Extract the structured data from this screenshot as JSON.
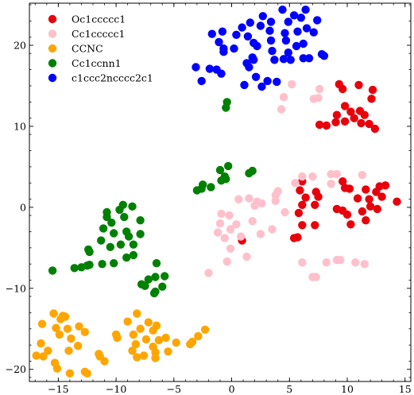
{
  "chart_data": {
    "type": "scatter",
    "title": "",
    "xlabel": "",
    "ylabel": "",
    "xlim": [
      -17.5,
      15.5
    ],
    "ylim": [
      -21.5,
      25.2
    ],
    "x_ticks": [
      -15,
      -10,
      -5,
      0,
      5,
      10,
      15
    ],
    "y_ticks": [
      -20,
      -10,
      0,
      10,
      20
    ],
    "x_tick_labels": [
      "−15",
      "−10",
      "−5",
      "0",
      "5",
      "10",
      "15"
    ],
    "y_tick_labels": [
      "−20",
      "−10",
      "0",
      "10",
      "20"
    ],
    "grid": false,
    "legend_position": "top-left",
    "series": [
      {
        "name": "Oc1ccccc1",
        "color": "#e8000b",
        "points": [
          [
            9.3,
            15.2
          ],
          [
            9.6,
            14.6
          ],
          [
            11.0,
            15.1
          ],
          [
            12.2,
            14.5
          ],
          [
            12.1,
            13.4
          ],
          [
            9.8,
            12.5
          ],
          [
            10.3,
            11.8
          ],
          [
            11.1,
            11.9
          ],
          [
            9.1,
            11.4
          ],
          [
            10.6,
            11.0
          ],
          [
            11.5,
            11.4
          ],
          [
            7.6,
            10.2
          ],
          [
            8.2,
            10.1
          ],
          [
            9.0,
            10.5
          ],
          [
            9.8,
            10.6
          ],
          [
            11.2,
            10.4
          ],
          [
            11.9,
            10.3
          ],
          [
            12.4,
            9.7
          ],
          [
            6.1,
            3.2
          ],
          [
            9.6,
            3.2
          ],
          [
            12.8,
            2.6
          ],
          [
            13.3,
            2.7
          ],
          [
            5.9,
            2.1
          ],
          [
            7.3,
            1.9
          ],
          [
            9.8,
            2.4
          ],
          [
            10.2,
            2.3
          ],
          [
            11.6,
            2.2
          ],
          [
            12.5,
            1.9
          ],
          [
            6.4,
            1.2
          ],
          [
            7.5,
            1.3
          ],
          [
            10.9,
            1.1
          ],
          [
            11.9,
            1.0
          ],
          [
            13.0,
            1.3
          ],
          [
            14.3,
            0.7
          ],
          [
            6.1,
            0.3
          ],
          [
            7.2,
            0.3
          ],
          [
            9.1,
            -0.2
          ],
          [
            9.6,
            -0.4
          ],
          [
            12.0,
            0.1
          ],
          [
            12.6,
            -0.2
          ],
          [
            5.8,
            -0.7
          ],
          [
            11.3,
            -0.5
          ],
          [
            10.0,
            -0.9
          ],
          [
            6.1,
            -2.2
          ],
          [
            7.2,
            -2.2
          ],
          [
            10.3,
            -2.1
          ],
          [
            11.6,
            -1.6
          ],
          [
            5.4,
            -3.8
          ],
          [
            5.7,
            -3.7
          ],
          [
            0.9,
            -4.1
          ]
        ]
      },
      {
        "name": "Cc1ccccc1",
        "color": "#ffc0cb",
        "points": [
          [
            5.2,
            15.2
          ],
          [
            7.6,
            14.6
          ],
          [
            4.5,
            13.6
          ],
          [
            7.1,
            13.4
          ],
          [
            7.5,
            13.5
          ],
          [
            4.3,
            12.1
          ],
          [
            6.1,
            3.8
          ],
          [
            7.0,
            3.8
          ],
          [
            8.6,
            4.1
          ],
          [
            9.1,
            4.1
          ],
          [
            11.3,
            4.0
          ],
          [
            5.5,
            3.0
          ],
          [
            8.6,
            2.9
          ],
          [
            4.0,
            2.0
          ],
          [
            3.8,
            1.5
          ],
          [
            1.5,
            1.1
          ],
          [
            0.6,
            1.0
          ],
          [
            2.2,
            0.7
          ],
          [
            3.8,
            0.8
          ],
          [
            2.0,
            0.2
          ],
          [
            2.6,
            0.5
          ],
          [
            -0.9,
            -0.8
          ],
          [
            4.6,
            -0.6
          ],
          [
            -0.2,
            -1.0
          ],
          [
            1.8,
            -1.7
          ],
          [
            -1.0,
            -2.0
          ],
          [
            0.4,
            -2.1
          ],
          [
            3.5,
            -2.7
          ],
          [
            -0.1,
            -2.7
          ],
          [
            -1.2,
            -3.1
          ],
          [
            2.5,
            -3.3
          ],
          [
            -0.6,
            -3.8
          ],
          [
            0.8,
            -3.6
          ],
          [
            -0.1,
            -5.1
          ],
          [
            1.3,
            -6.1
          ],
          [
            -0.4,
            -6.7
          ],
          [
            6.1,
            -6.8
          ],
          [
            8.2,
            -6.8
          ],
          [
            9.1,
            -6.5
          ],
          [
            9.4,
            -6.5
          ],
          [
            10.7,
            -6.8
          ],
          [
            11.5,
            -7.0
          ],
          [
            -2.0,
            -8.1
          ],
          [
            7.0,
            -8.6
          ],
          [
            7.3,
            -8.6
          ]
        ]
      },
      {
        "name": "CCNC",
        "color": "#ffa500",
        "points": [
          [
            -15.4,
            -13.1
          ],
          [
            -14.4,
            -13.5
          ],
          [
            -14.6,
            -13.4
          ],
          [
            -8.2,
            -13.1
          ],
          [
            -14.8,
            -13.8
          ],
          [
            -7.2,
            -14.2
          ],
          [
            -16.4,
            -14.4
          ],
          [
            -9.0,
            -14.1
          ],
          [
            -6.5,
            -14.6
          ],
          [
            -13.2,
            -14.7
          ],
          [
            -15.2,
            -14.9
          ],
          [
            -14.2,
            -15.0
          ],
          [
            -12.7,
            -15.4
          ],
          [
            -7.9,
            -15.0
          ],
          [
            -6.8,
            -15.2
          ],
          [
            -2.3,
            -15.1
          ],
          [
            -8.5,
            -15.7
          ],
          [
            -10.0,
            -15.7
          ],
          [
            -14.9,
            -15.7
          ],
          [
            -9.9,
            -16.1
          ],
          [
            -13.9,
            -16.2
          ],
          [
            -2.9,
            -15.9
          ],
          [
            -7.4,
            -16.3
          ],
          [
            -5.7,
            -16.1
          ],
          [
            -6.3,
            -16.4
          ],
          [
            -3.4,
            -16.6
          ],
          [
            -4.8,
            -16.7
          ],
          [
            -3.6,
            -16.9
          ],
          [
            -16.5,
            -16.8
          ],
          [
            -8.3,
            -16.9
          ],
          [
            -6.8,
            -17.2
          ],
          [
            -13.3,
            -17.1
          ],
          [
            -15.9,
            -17.7
          ],
          [
            -8.6,
            -17.7
          ],
          [
            -14.1,
            -17.7
          ],
          [
            -5.5,
            -17.8
          ],
          [
            -6.6,
            -17.9
          ],
          [
            -16.9,
            -18.3
          ],
          [
            -16.3,
            -18.4
          ],
          [
            -11.5,
            -18.1
          ],
          [
            -7.6,
            -18.3
          ],
          [
            -11.4,
            -18.4
          ],
          [
            -8.2,
            -18.5
          ],
          [
            -6.6,
            -18.6
          ],
          [
            -11.0,
            -19.0
          ],
          [
            -15.3,
            -19.2
          ],
          [
            -15.1,
            -19.9
          ],
          [
            -12.7,
            -20.3
          ],
          [
            -14.0,
            -20.5
          ],
          [
            -12.5,
            -20.5
          ]
        ]
      },
      {
        "name": "Cc1ccnn1",
        "color": "#008000",
        "points": [
          [
            -0.4,
            13.0
          ],
          [
            -0.5,
            12.3
          ],
          [
            -0.3,
            5.1
          ],
          [
            -1.0,
            4.6
          ],
          [
            1.8,
            4.5
          ],
          [
            1.5,
            4.2
          ],
          [
            -0.6,
            3.8
          ],
          [
            -0.9,
            3.3
          ],
          [
            -0.5,
            3.5
          ],
          [
            -2.5,
            2.8
          ],
          [
            -2.6,
            2.3
          ],
          [
            -1.8,
            2.5
          ],
          [
            -3.0,
            2.1
          ],
          [
            -9.4,
            0.3
          ],
          [
            -9.7,
            -0.3
          ],
          [
            -8.6,
            0.1
          ],
          [
            -10.8,
            -0.6
          ],
          [
            -10.8,
            -1.2
          ],
          [
            -9.3,
            -1.2
          ],
          [
            -7.9,
            -1.6
          ],
          [
            -10.4,
            -1.9
          ],
          [
            -11.1,
            -2.6
          ],
          [
            -9.1,
            -3.0
          ],
          [
            -7.9,
            -3.3
          ],
          [
            -10.2,
            -3.2
          ],
          [
            -8.9,
            -3.6
          ],
          [
            -11.3,
            -4.1
          ],
          [
            -9.6,
            -4.6
          ],
          [
            -8.5,
            -4.6
          ],
          [
            -12.4,
            -5.2
          ],
          [
            -10.5,
            -4.9
          ],
          [
            -12.3,
            -5.5
          ],
          [
            -9.1,
            -6.2
          ],
          [
            -8.5,
            -5.9
          ],
          [
            -12.3,
            -7.1
          ],
          [
            -12.5,
            -7.2
          ],
          [
            -10.2,
            -6.9
          ],
          [
            -11.2,
            -7.0
          ],
          [
            -13.0,
            -7.4
          ],
          [
            -13.6,
            -7.5
          ],
          [
            -6.5,
            -6.9
          ],
          [
            -15.5,
            -7.8
          ],
          [
            -6.6,
            -8.6
          ],
          [
            -5.8,
            -8.5
          ],
          [
            -7.2,
            -8.9
          ],
          [
            -7.5,
            -9.7
          ],
          [
            -7.8,
            -9.5
          ],
          [
            -6.0,
            -9.8
          ],
          [
            -6.6,
            -10.4
          ],
          [
            -6.7,
            -10.6
          ]
        ]
      },
      {
        "name": "c1ccc2ncccc2c1",
        "color": "#0000ff",
        "points": [
          [
            4.4,
            24.4
          ],
          [
            6.4,
            24.4
          ],
          [
            5.4,
            23.7
          ],
          [
            6.0,
            23.4
          ],
          [
            2.7,
            23.6
          ],
          [
            4.9,
            22.9
          ],
          [
            3.4,
            22.9
          ],
          [
            7.4,
            23.1
          ],
          [
            1.6,
            22.8
          ],
          [
            2.5,
            22.4
          ],
          [
            0.9,
            22.2
          ],
          [
            6.5,
            22.1
          ],
          [
            -0.8,
            21.7
          ],
          [
            5.7,
            21.7
          ],
          [
            7.1,
            21.6
          ],
          [
            3.3,
            21.8
          ],
          [
            4.6,
            21.5
          ],
          [
            -1.7,
            21.4
          ],
          [
            0.4,
            21.3
          ],
          [
            1.4,
            21.1
          ],
          [
            6.2,
            20.2
          ],
          [
            3.4,
            20.6
          ],
          [
            4.7,
            20.6
          ],
          [
            -1.1,
            20.4
          ],
          [
            1.9,
            20.3
          ],
          [
            5.6,
            19.9
          ],
          [
            2.2,
            19.9
          ],
          [
            0.2,
            19.6
          ],
          [
            -0.7,
            19.2
          ],
          [
            -0.7,
            19.6
          ],
          [
            3.5,
            19.3
          ],
          [
            4.9,
            19.1
          ],
          [
            7.8,
            18.9
          ],
          [
            8.0,
            18.7
          ],
          [
            1.8,
            18.5
          ],
          [
            1.9,
            18.2
          ],
          [
            3.7,
            18.2
          ],
          [
            4.5,
            18.3
          ],
          [
            5.1,
            18.2
          ],
          [
            6.2,
            18.4
          ],
          [
            6.7,
            18.4
          ],
          [
            1.3,
            17.8
          ],
          [
            1.5,
            17.3
          ],
          [
            -1.9,
            17.1
          ],
          [
            -3.1,
            17.3
          ],
          [
            -1.3,
            17.0
          ],
          [
            -0.9,
            16.5
          ],
          [
            2.1,
            16.1
          ],
          [
            3.9,
            15.5
          ],
          [
            -2.6,
            15.6
          ],
          [
            1.1,
            15.1
          ],
          [
            3.1,
            15.6
          ],
          [
            2.6,
            14.9
          ]
        ]
      }
    ]
  }
}
